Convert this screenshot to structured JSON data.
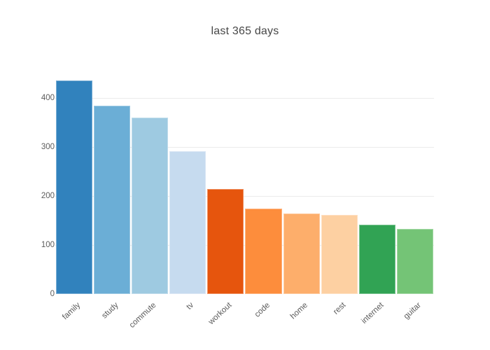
{
  "chart_data": {
    "type": "bar",
    "title": "last 365 days",
    "categories": [
      "family",
      "study",
      "commute",
      "tv",
      "workout",
      "code",
      "home",
      "rest",
      "internet",
      "guitar"
    ],
    "values": [
      436,
      385,
      360,
      291,
      214,
      174,
      164,
      161,
      141,
      133
    ],
    "bar_colors": [
      "#3182bd",
      "#6baed6",
      "#9ecae1",
      "#c6dbef",
      "#e6550d",
      "#fd8d3c",
      "#fdae6b",
      "#fdd0a2",
      "#31a354",
      "#74c476"
    ],
    "xlabel": "",
    "ylabel": "",
    "ylim": [
      0,
      450
    ],
    "yticks": [
      0,
      100,
      200,
      300,
      400
    ],
    "grid": true,
    "legend": "none",
    "colors": {
      "background": "#ffffff",
      "gridline": "#ececec",
      "tick_label": "#5c5c5c",
      "title": "#474747"
    }
  }
}
